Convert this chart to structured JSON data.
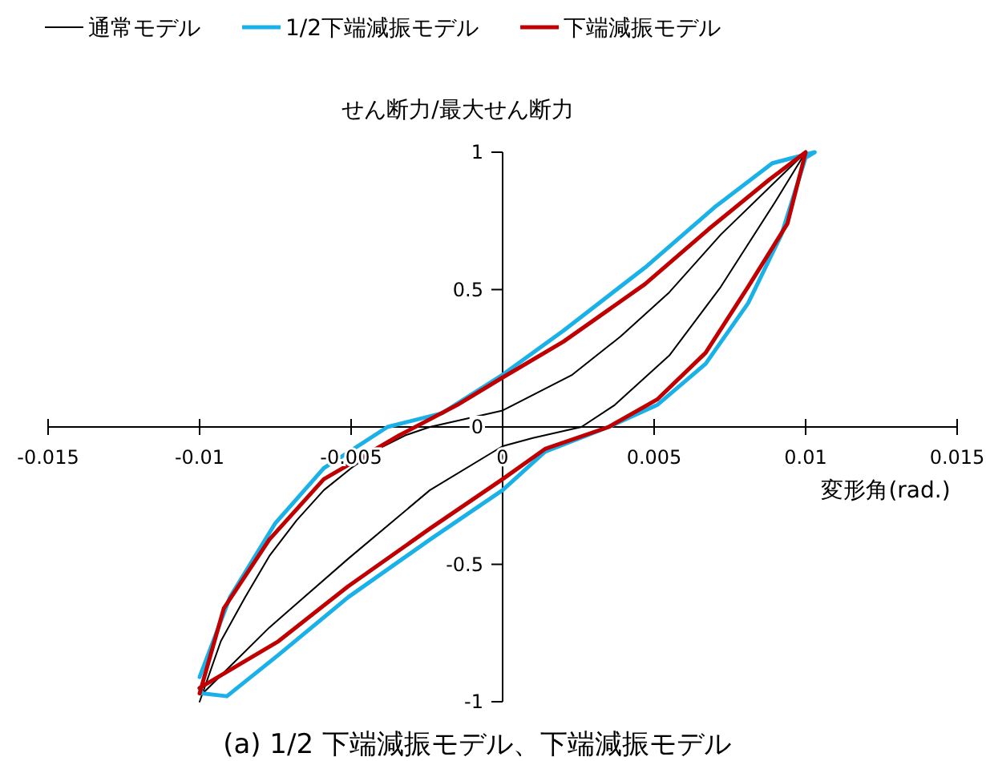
{
  "chart_data": {
    "type": "line",
    "ylabel": "せん断力/最大せん断力",
    "xlabel": "変形角(rad.)",
    "annotations": [
      "(a) 1/2 下端減振モデル、下端減振モデル"
    ],
    "xlim": [
      -0.015,
      0.015
    ],
    "xticks": [
      -0.015,
      -0.01,
      -0.005,
      0,
      0.005,
      0.01,
      0.015
    ],
    "ylim": [
      -1,
      1
    ],
    "yticks": [
      -1,
      -0.5,
      0,
      0.5,
      1
    ],
    "grid": false,
    "legend": "top",
    "marker": "none",
    "line_style": "solid",
    "series": [
      {
        "name": "通常モデル",
        "color": "#000000",
        "x": [
          -0.01,
          -0.0093,
          -0.0085,
          -0.0077,
          -0.0068,
          -0.0059,
          -0.005,
          -0.0041,
          -0.0032,
          -0.0024,
          -0.0012,
          0,
          0.0023,
          0.0039,
          0.0055,
          0.0072,
          0.01,
          0.009,
          0.0072,
          0.0055,
          0.0037,
          0.0026,
          0.001,
          0,
          -0.0024,
          -0.0051,
          -0.0077,
          -0.0099
        ],
        "values": [
          -1,
          -0.78,
          -0.62,
          -0.47,
          -0.34,
          -0.23,
          -0.15,
          -0.08,
          -0.03,
          0,
          0.03,
          0.06,
          0.19,
          0.33,
          0.49,
          0.7,
          1,
          0.82,
          0.51,
          0.26,
          0.08,
          0,
          -0.04,
          -0.07,
          -0.23,
          -0.48,
          -0.73,
          -0.97
        ]
      },
      {
        "name": "1/2下端減振モデル",
        "color": "#1ab0e8",
        "x": [
          -0.01,
          -0.009,
          -0.0075,
          -0.0059,
          -0.0038,
          -0.002,
          0,
          0.002,
          0.0047,
          0.007,
          0.0089,
          0.0103,
          0.01,
          0.0092,
          0.0081,
          0.0067,
          0.0051,
          0.0035,
          0.0014,
          0,
          -0.0024,
          -0.0051,
          -0.0074,
          -0.0091,
          -0.0099,
          -0.01
        ],
        "values": [
          -0.91,
          -0.62,
          -0.35,
          -0.15,
          0,
          0.05,
          0.19,
          0.35,
          0.58,
          0.8,
          0.96,
          1,
          0.98,
          0.7,
          0.45,
          0.23,
          0.08,
          0,
          -0.09,
          -0.23,
          -0.41,
          -0.62,
          -0.83,
          -0.98,
          -0.97,
          -0.95
        ]
      },
      {
        "name": "下端減振モデル",
        "color": "#c00000",
        "x": [
          -0.01,
          -0.0092,
          -0.0077,
          -0.0059,
          -0.0034,
          -0.0015,
          0,
          0.002,
          0.0047,
          0.0068,
          0.0088,
          0.01,
          0.0094,
          0.0081,
          0.0067,
          0.0051,
          0.0035,
          0.0014,
          0,
          -0.0024,
          -0.0051,
          -0.0074,
          -0.01
        ],
        "values": [
          -0.97,
          -0.66,
          -0.41,
          -0.19,
          -0.03,
          0.08,
          0.18,
          0.31,
          0.52,
          0.72,
          0.9,
          1,
          0.74,
          0.51,
          0.27,
          0.1,
          0,
          -0.08,
          -0.19,
          -0.37,
          -0.58,
          -0.78,
          -0.95
        ]
      }
    ]
  }
}
